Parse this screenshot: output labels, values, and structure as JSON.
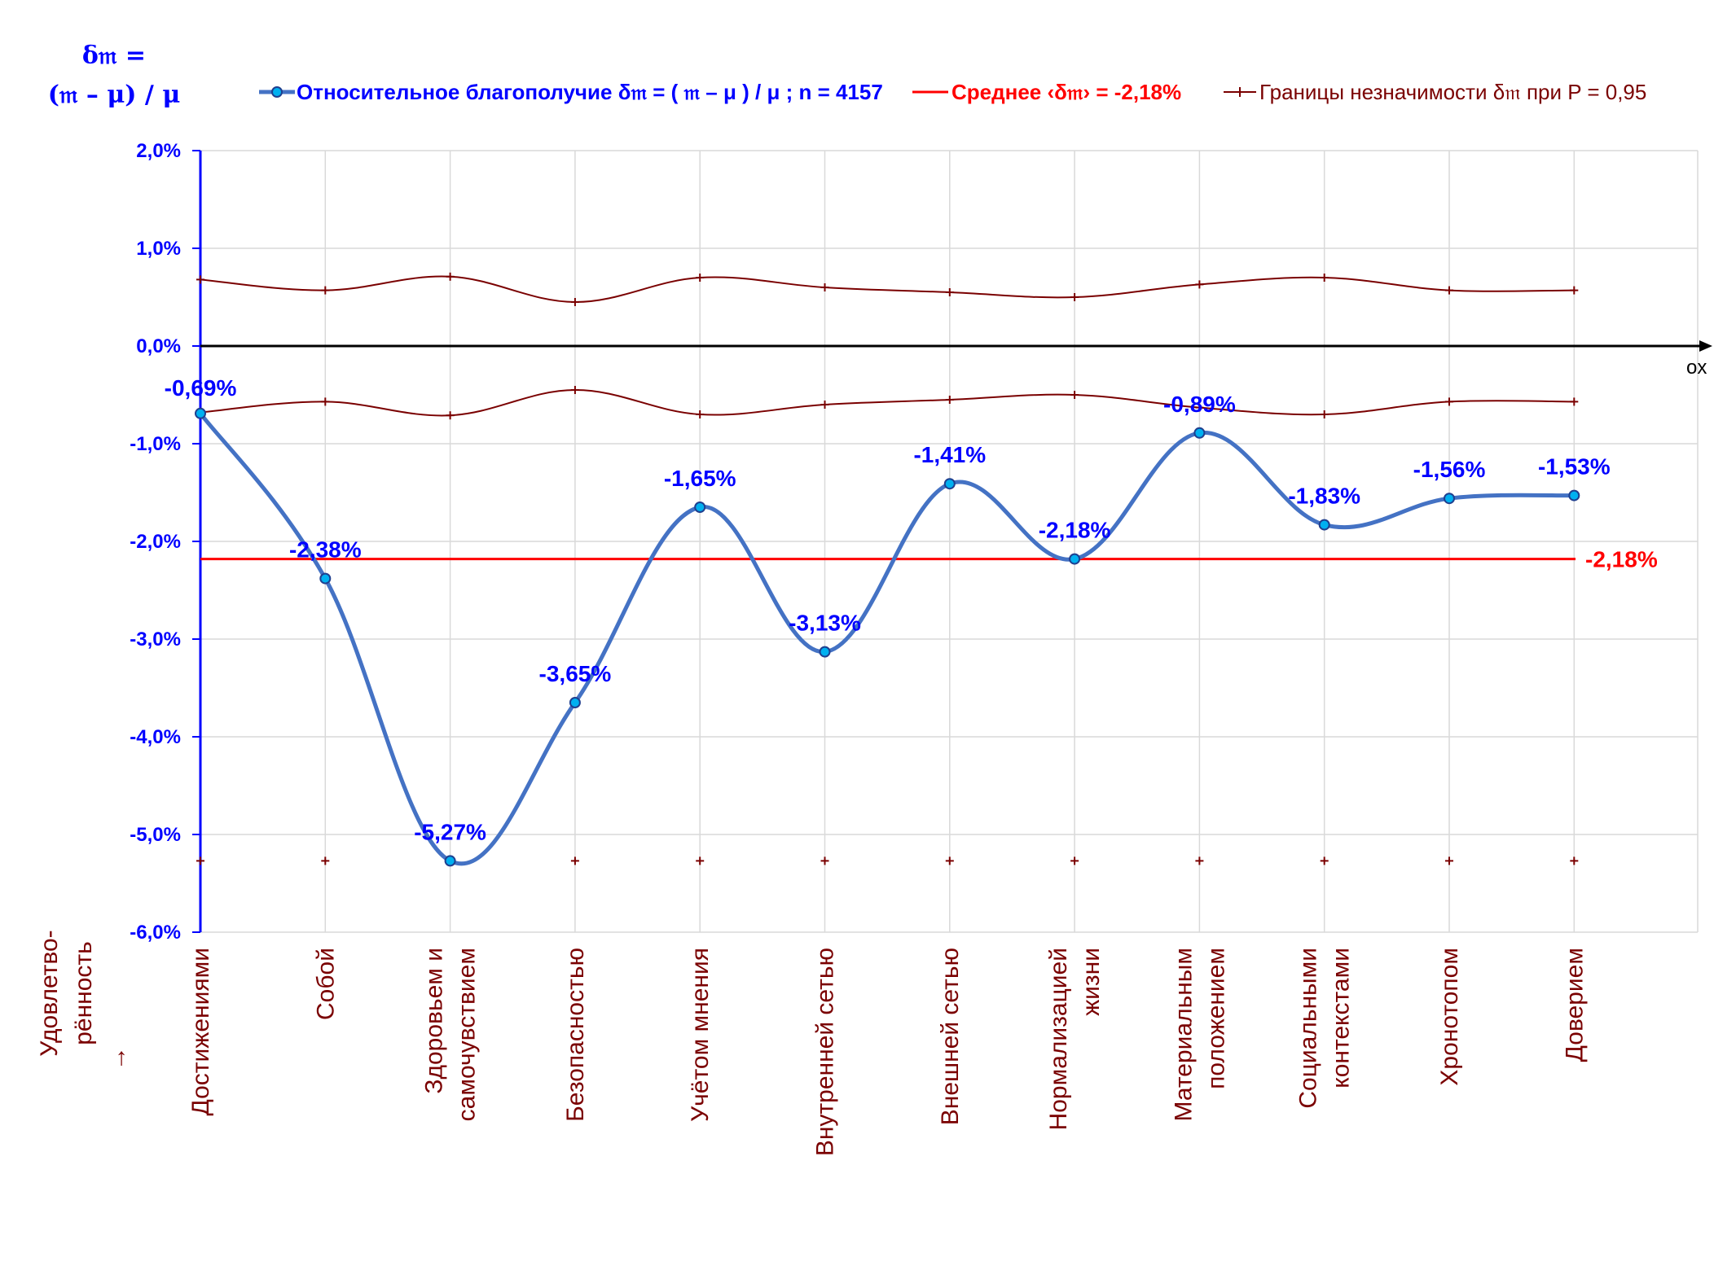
{
  "chart_data": {
    "type": "line",
    "y_title_lines": [
      "δ𝔪 =",
      "(𝔪 – μ) / μ"
    ],
    "legend": {
      "main": "Относительное благополучие δ𝔪 = ( 𝔪 – μ ) / μ ; n = 4157",
      "mean": "Среднее ‹δ𝔪› = -2,18%",
      "bounds": "Границы незначимости δ𝔪 при P = 0,95"
    },
    "colors": {
      "series": "#4472c4",
      "marker_fill": "#00b0f0",
      "mean": "#ff0000",
      "bounds": "#7a0000",
      "axis": "#0000ff",
      "grid": "#d9d9d9",
      "category": "#7a0000"
    },
    "categories": [
      [
        "Достижениями"
      ],
      [
        "Собой"
      ],
      [
        "Здоровьем и",
        "самочувствием"
      ],
      [
        "Безопасностью"
      ],
      [
        "Учётом мнения"
      ],
      [
        "Внутренней сетью"
      ],
      [
        "Внешней сетью"
      ],
      [
        "Нормализацией",
        "жизни"
      ],
      [
        "Материальным",
        "положением"
      ],
      [
        "Социальными",
        "контекстами"
      ],
      [
        "Хронотопом"
      ],
      [
        "Доверием"
      ]
    ],
    "values": [
      -0.69,
      -2.38,
      -5.27,
      -3.65,
      -1.65,
      -3.13,
      -1.41,
      -2.18,
      -0.89,
      -1.83,
      -1.56,
      -1.53
    ],
    "data_labels": [
      "-0,69%",
      "-2,38%",
      "-5,27%",
      "-3,65%",
      "-1,65%",
      "-3,13%",
      "-1,41%",
      "-2,18%",
      "-0,89%",
      "-1,83%",
      "-1,56%",
      "-1,53%"
    ],
    "upper_bound": [
      0.68,
      0.57,
      0.71,
      0.45,
      0.7,
      0.6,
      0.55,
      0.5,
      0.63,
      0.7,
      0.57,
      0.57
    ],
    "lower_bound": [
      -0.68,
      -0.57,
      -0.71,
      -0.45,
      -0.7,
      -0.6,
      -0.55,
      -0.5,
      -0.63,
      -0.7,
      -0.57,
      -0.57
    ],
    "baseline_marks": -5.27,
    "mean": -2.18,
    "mean_label": "-2,18%",
    "ylim": [
      -6,
      2
    ],
    "ytick_values": [
      2,
      1,
      0,
      -1,
      -2,
      -3,
      -4,
      -5,
      -6
    ],
    "ytick_labels": [
      "2,0%",
      "1,0%",
      "0,0%",
      "-1,0%",
      "-2,0%",
      "-3,0%",
      "-4,0%",
      "-5,0%",
      "-6,0%"
    ],
    "x_axis_label": "ox",
    "side_label": [
      "Удовлетво-",
      "рённость",
      "→"
    ],
    "grid": true
  }
}
